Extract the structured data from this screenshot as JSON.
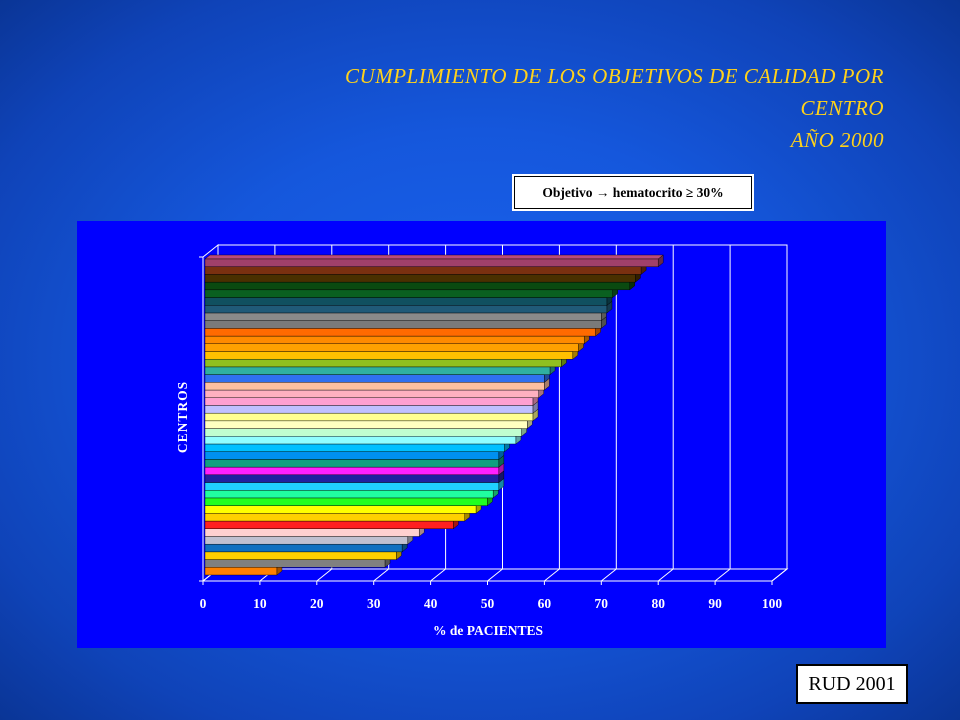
{
  "slide": {
    "title_line1": "CUMPLIMIENTO DE LOS OBJETIVOS DE CALIDAD POR",
    "title_line2": "CENTRO",
    "title_line3": "AÑO 2000",
    "objective_label": "Objetivo → hematocrito ≥ 30%",
    "footer_label": "RUD 2001"
  },
  "colors": {
    "background": "#1557dc",
    "title_text": "#ffd21a",
    "chart_background": "#0000ff",
    "plot_area": "#0000ff"
  },
  "chart_data": {
    "type": "bar",
    "orientation": "horizontal",
    "style": "3d",
    "xlabel": "% de PACIENTES",
    "ylabel": "CENTROS",
    "xlim": [
      0,
      100
    ],
    "x_ticks": [
      "0",
      "10",
      "20",
      "30",
      "40",
      "50",
      "60",
      "70",
      "80",
      "90",
      "100"
    ],
    "grid": "vertical",
    "values": [
      80,
      77,
      76,
      75,
      72,
      71,
      71,
      70,
      70,
      69,
      67,
      66,
      65,
      63,
      61,
      60,
      60,
      59,
      58,
      58,
      58,
      57,
      56,
      55,
      53,
      52,
      52,
      52,
      52,
      52,
      51,
      50,
      48,
      46,
      44,
      38,
      36,
      35,
      34,
      32,
      13
    ],
    "bar_colors": [
      "#a0406a",
      "#7a3010",
      "#4a3000",
      "#0a4a10",
      "#0a6020",
      "#105060",
      "#205a78",
      "#8a8a8a",
      "#7a7a7a",
      "#ff6a00",
      "#ff8a00",
      "#ffa000",
      "#ffc000",
      "#90c020",
      "#30b0a0",
      "#3070f0",
      "#ffc0a0",
      "#ffb0c0",
      "#ffa0d0",
      "#c0c0ff",
      "#ffff90",
      "#ffffc0",
      "#c0ffd0",
      "#90ffff",
      "#00c0ff",
      "#0090f0",
      "#10a080",
      "#ff20ff",
      "#2020a0",
      "#20d0ff",
      "#20ffa0",
      "#20ff20",
      "#ffff00",
      "#ffd000",
      "#ff2020",
      "#ffd0d0",
      "#c0c0d0",
      "#1070c0",
      "#ffd000",
      "#808080",
      "#ff8000"
    ]
  }
}
